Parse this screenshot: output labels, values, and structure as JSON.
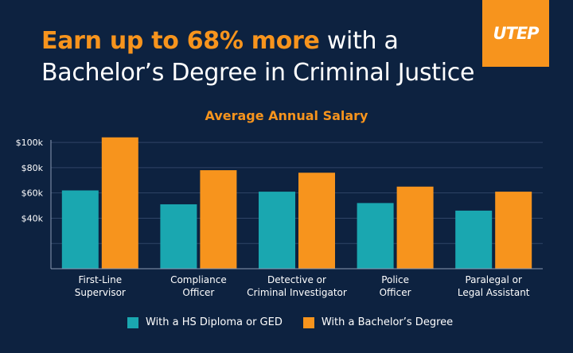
{
  "headline": {
    "accent": "Earn up to 68% more",
    "rest": " with a",
    "line2": "Bachelor’s Degree in Criminal Justice"
  },
  "logo": {
    "text": "UTEP"
  },
  "colors": {
    "background": "#0d2240",
    "hs": "#1aa7b0",
    "bachelor": "#f7941d",
    "grid": "#2f4466"
  },
  "chart_data": {
    "type": "bar",
    "title": "Average Annual Salary",
    "categories": [
      [
        "First-Line",
        "Supervisor"
      ],
      [
        "Compliance",
        "Officer"
      ],
      [
        "Detective or",
        "Criminal Investigator"
      ],
      [
        "Police",
        "Officer"
      ],
      [
        "Paralegal or",
        "Legal Assistant"
      ]
    ],
    "series": [
      {
        "name": "With a HS Diploma or GED",
        "color": "#1aa7b0",
        "values": [
          62000,
          51000,
          61000,
          52000,
          46000
        ]
      },
      {
        "name": "With a Bachelor’s Degree",
        "color": "#f7941d",
        "values": [
          104000,
          78000,
          76000,
          65000,
          61000
        ]
      }
    ],
    "yticks": [
      "$100k",
      "$80k",
      "$60k",
      "$40k"
    ],
    "ytick_values": [
      100000,
      80000,
      60000,
      40000
    ],
    "ylim": [
      0,
      107000
    ],
    "grid": true,
    "legend": "bottom"
  }
}
